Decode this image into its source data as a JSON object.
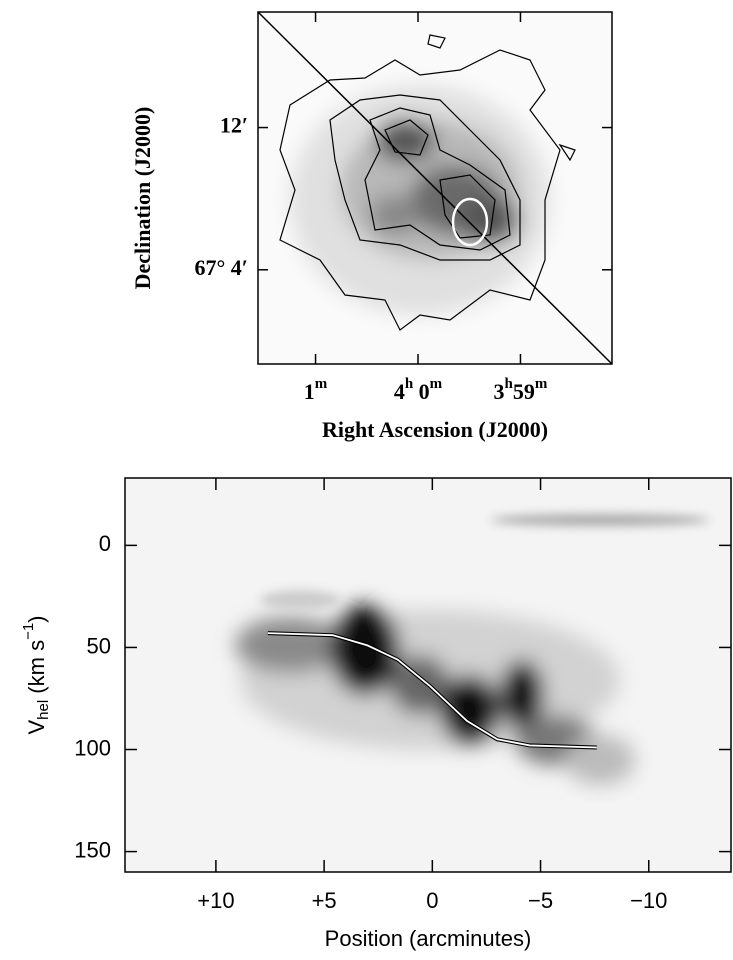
{
  "chart_data": [
    {
      "type": "contour",
      "x_label": "Right Ascension (J2000)",
      "y_label": "Declination (J2000)",
      "xlim": [
        93.7,
        -113.6
      ],
      "ylim": [
        -1.3,
        18.5
      ],
      "xticks": [
        {
          "value": 60,
          "label": "1m"
        },
        {
          "value": 0,
          "label": "4h 0m"
        },
        {
          "value": -60,
          "label": "3h59m"
        }
      ],
      "yticks": [
        {
          "value": 12,
          "label": "12′"
        },
        {
          "value": 4,
          "label": "67° 4′"
        }
      ]
    },
    {
      "type": "line",
      "x_label": "Position (arcminutes)",
      "y_label": [
        "V",
        "hel",
        " (km s",
        "−1",
        ")"
      ],
      "xlim": [
        14.2,
        -13.8
      ],
      "ylim": [
        160,
        -33
      ],
      "xticks": [
        {
          "value": 10,
          "label": "+10"
        },
        {
          "value": 5,
          "label": "+5"
        },
        0,
        {
          "value": -5,
          "label": "−5"
        },
        {
          "value": -10,
          "label": "−10"
        }
      ],
      "yticks": [
        0,
        50,
        100,
        150
      ],
      "x": [
        7.6,
        4.6,
        3.0,
        1.6,
        0.1,
        -1.6,
        -3.0,
        -4.5,
        -7.6
      ],
      "series": [
        {
          "color": "#ffffff",
          "values": [
            43,
            44,
            49,
            56,
            69,
            86,
            95,
            98,
            99
          ]
        }
      ]
    }
  ]
}
